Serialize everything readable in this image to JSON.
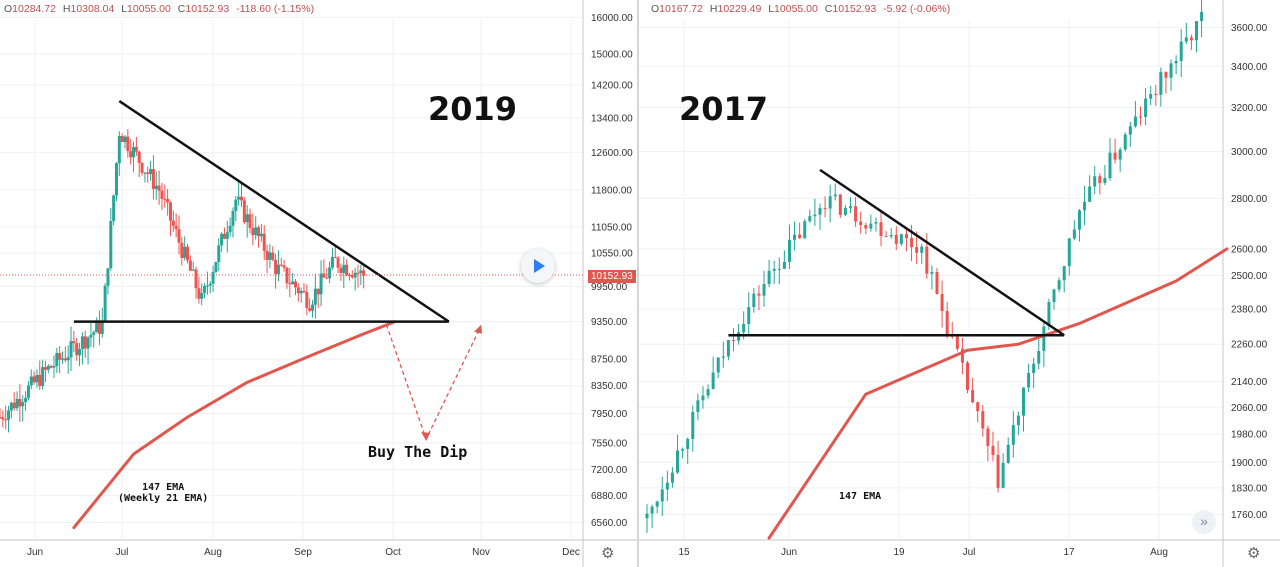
{
  "colors": {
    "up": "#26a69a",
    "down": "#ef5350",
    "ema": "#e0574f",
    "line": "#111111",
    "dashed": "#e0574f"
  },
  "left": {
    "ohlc": {
      "o": "10284.72",
      "h": "10308.04",
      "l": "10055.00",
      "c": "10152.93",
      "chg": "-118.60 (-1.15%)"
    },
    "year": "2019",
    "ema_label_1": "147 EMA",
    "ema_label_2": "(Weekly 21 EMA)",
    "callout": "Buy The Dip",
    "last_price": "10152.93",
    "gear_icon": "gear-icon"
  },
  "right": {
    "ohlc": {
      "o": "10167.72",
      "h": "10229.49",
      "l": "10055.00",
      "c": "10152.93",
      "chg": "-5.92 (-0.06%)"
    },
    "year": "2017",
    "ema_label": "147 EMA",
    "gear_icon": "gear-icon",
    "scroll_icon": "double-chevron-right-icon"
  },
  "chart_data": [
    {
      "type": "line",
      "title": "2019",
      "x_ticks": [
        "Jun",
        "Jul",
        "Aug",
        "Sep",
        "Oct",
        "Nov",
        "Dec"
      ],
      "y_ticks": [
        "16000.00",
        "15000.00",
        "14200.00",
        "13400.00",
        "12600.00",
        "11800.00",
        "11050.00",
        "10550.00",
        "9950.00",
        "9350.00",
        "8750.00",
        "8350.00",
        "7950.00",
        "7550.00",
        "7200.00",
        "6880.00",
        "6560.00"
      ],
      "ylim": [
        6450,
        16150
      ],
      "log_scale": true,
      "grid": true,
      "price_approx": {
        "x": [
          "2019-05-15",
          "2019-06-01",
          "2019-06-20",
          "2019-06-26",
          "2019-07-10",
          "2019-07-25",
          "2019-08-06",
          "2019-08-20",
          "2019-09-01",
          "2019-09-10",
          "2019-09-20"
        ],
        "y": [
          7900,
          8600,
          9300,
          13100,
          11800,
          9700,
          11600,
          10300,
          9700,
          10400,
          10150
        ]
      },
      "ema_147": {
        "name": "147 EMA",
        "x": [
          "2019-06-10",
          "2019-07-01",
          "2019-07-20",
          "2019-08-10",
          "2019-09-01",
          "2019-09-20",
          "2019-10-01"
        ],
        "y": [
          6500,
          7400,
          7900,
          8400,
          8800,
          9150,
          9350
        ]
      },
      "triangle_resistance": {
        "x": [
          "2019-06-26",
          "2019-10-20"
        ],
        "y": [
          13800,
          9350
        ]
      },
      "triangle_support": {
        "x": [
          "2019-06-10",
          "2019-10-20"
        ],
        "y": [
          9350,
          9350
        ]
      },
      "projection": {
        "x": [
          "2019-09-28",
          "2019-10-12",
          "2019-10-31"
        ],
        "y": [
          9300,
          7600,
          9250
        ]
      },
      "annotations": [
        "147 EMA (Weekly 21 EMA)",
        "Buy The Dip"
      ],
      "last_price": 10152.93
    },
    {
      "type": "line",
      "title": "2017",
      "x_ticks": [
        "15",
        "Jun",
        "19",
        "Jul",
        "17",
        "Aug"
      ],
      "y_ticks": [
        "3600.00",
        "3400.00",
        "3200.00",
        "3000.00",
        "2800.00",
        "2600.00",
        "2500.00",
        "2380.00",
        "2260.00",
        "2140.00",
        "2060.00",
        "1980.00",
        "1900.00",
        "1830.00",
        "1760.00"
      ],
      "ylim": [
        1700,
        3650
      ],
      "log_scale": true,
      "grid": true,
      "price_approx": {
        "x": [
          "2017-05-08",
          "2017-05-25",
          "2017-06-01",
          "2017-06-12",
          "2017-07-01",
          "2017-07-16",
          "2017-08-01",
          "2017-08-15",
          "2017-08-25"
        ],
        "y": [
          1750,
          2300,
          2500,
          2800,
          2600,
          1850,
          2750,
          3250,
          3650
        ]
      },
      "ema_147": {
        "name": "147 EMA",
        "x": [
          "2017-06-01",
          "2017-06-20",
          "2017-07-10",
          "2017-07-20",
          "2017-08-01",
          "2017-08-20",
          "2017-08-30"
        ],
        "y": [
          1700,
          2100,
          2240,
          2260,
          2330,
          2480,
          2600
        ]
      },
      "triangle_resistance": {
        "x": [
          "2017-06-11",
          "2017-07-29"
        ],
        "y": [
          2920,
          2290
        ]
      },
      "triangle_support": {
        "x": [
          "2017-05-24",
          "2017-07-29"
        ],
        "y": [
          2290,
          2290
        ]
      },
      "annotations": [
        "147 EMA"
      ]
    }
  ]
}
